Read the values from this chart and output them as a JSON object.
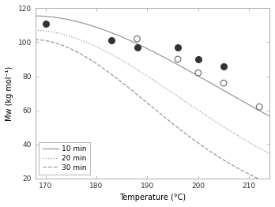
{
  "title": "",
  "xlabel": "Temperature (°C)",
  "ylabel": "Mw (kg mol⁻¹)",
  "xlim": [
    168,
    214
  ],
  "ylim": [
    20,
    120
  ],
  "xticks": [
    170,
    180,
    190,
    200,
    210
  ],
  "yticks": [
    20,
    40,
    60,
    80,
    100,
    120
  ],
  "scatter_filled": {
    "x": [
      170,
      183,
      188,
      196,
      200,
      205
    ],
    "y": [
      111,
      101,
      97,
      97,
      90,
      86
    ]
  },
  "scatter_open": {
    "x": [
      188,
      196,
      200,
      205,
      212
    ],
    "y": [
      102,
      90,
      82,
      76,
      62
    ]
  },
  "curve_10min": {
    "p0": 115.5,
    "p1": -0.0006,
    "p2": 1.85,
    "label": "10 min",
    "linestyle": "solid"
  },
  "curve_20min": {
    "p0": 107.0,
    "p1": -0.00095,
    "p2": 1.85,
    "label": "20 min",
    "linestyle": "dotted"
  },
  "curve_30min": {
    "p0": 101.5,
    "p1": -0.0015,
    "p2": 1.85,
    "label": "30 min",
    "linestyle": "dashed"
  },
  "line_color": "#999999",
  "marker_filled_color": "#333333",
  "marker_open_edge": "#777777",
  "marker_size": 5.5,
  "background_color": "#ffffff",
  "legend_loc": "lower left",
  "figsize": [
    3.48,
    2.62
  ],
  "dpi": 100
}
